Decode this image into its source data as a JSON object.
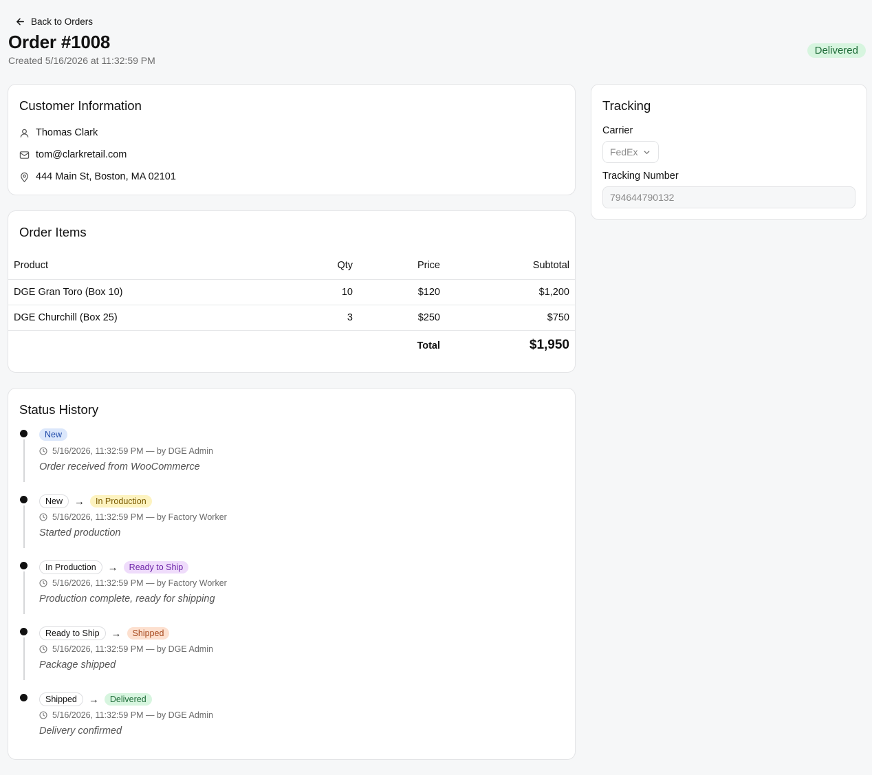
{
  "nav": {
    "back_label": "Back to Orders"
  },
  "order": {
    "title": "Order #1008",
    "created": "Created 5/16/2026 at 11:32:59 PM",
    "status": "Delivered"
  },
  "customer": {
    "heading": "Customer Information",
    "name": "Thomas Clark",
    "email": "tom@clarkretail.com",
    "address": "444 Main St, Boston, MA 02101"
  },
  "items": {
    "heading": "Order Items",
    "columns": {
      "product": "Product",
      "qty": "Qty",
      "price": "Price",
      "subtotal": "Subtotal"
    },
    "rows": [
      {
        "product": "DGE Gran Toro (Box 10)",
        "qty": "10",
        "price": "$120",
        "subtotal": "$1,200"
      },
      {
        "product": "DGE Churchill (Box 25)",
        "qty": "3",
        "price": "$250",
        "subtotal": "$750"
      }
    ],
    "total_label": "Total",
    "total_value": "$1,950"
  },
  "tracking": {
    "heading": "Tracking",
    "carrier_label": "Carrier",
    "carrier_value": "FedEx",
    "number_label": "Tracking Number",
    "number_value": "794644790132"
  },
  "history": {
    "heading": "Status History",
    "entries": [
      {
        "from": "",
        "to": "New",
        "meta": "5/16/2026, 11:32:59 PM — by DGE Admin",
        "note": "Order received from WooCommerce"
      },
      {
        "from": "New",
        "to": "In Production",
        "meta": "5/16/2026, 11:32:59 PM — by Factory Worker",
        "note": "Started production"
      },
      {
        "from": "In Production",
        "to": "Ready to Ship",
        "meta": "5/16/2026, 11:32:59 PM — by Factory Worker",
        "note": "Production complete, ready for shipping"
      },
      {
        "from": "Ready to Ship",
        "to": "Shipped",
        "meta": "5/16/2026, 11:32:59 PM — by DGE Admin",
        "note": "Package shipped"
      },
      {
        "from": "Shipped",
        "to": "Delivered",
        "meta": "5/16/2026, 11:32:59 PM — by DGE Admin",
        "note": "Delivery confirmed"
      }
    ],
    "arrow": "→"
  },
  "colors": {
    "delivered_bg": "#d7f5df",
    "delivered_fg": "#1e6b38",
    "new_bg": "#dbe7fb",
    "production_bg": "#fdf3c0",
    "ready_bg": "#efdcfb",
    "shipped_bg": "#fde0cf"
  },
  "icons": [
    "arrow-left-icon",
    "user-icon",
    "mail-icon",
    "map-pin-icon",
    "chevron-down-icon",
    "clock-icon"
  ]
}
